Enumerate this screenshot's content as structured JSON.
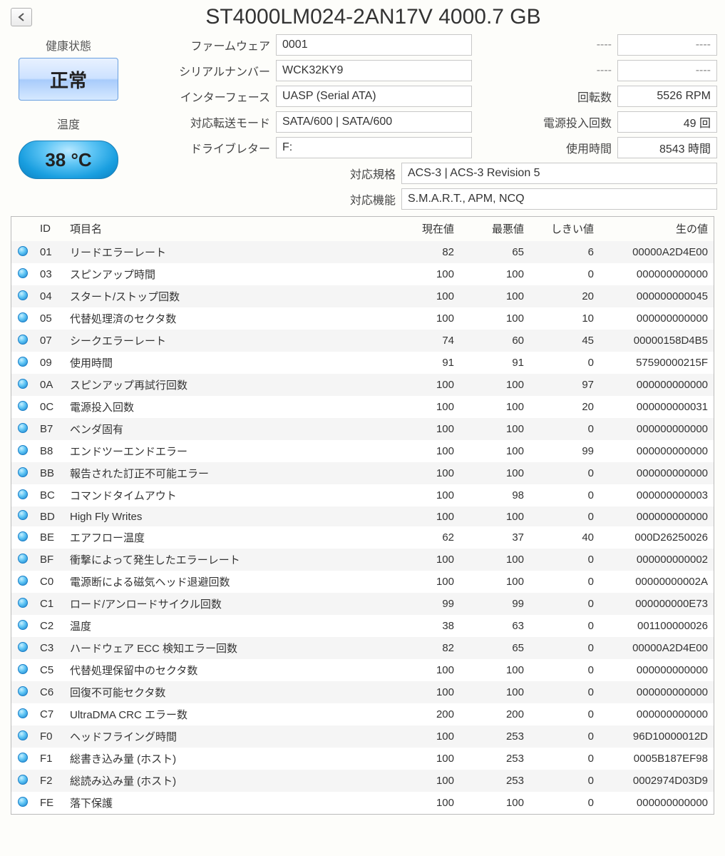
{
  "title": "ST4000LM024-2AN17V 4000.7 GB",
  "health": {
    "label": "健康状態",
    "value": "正常"
  },
  "temp": {
    "label": "温度",
    "value": "38 °C"
  },
  "info": {
    "firmware": {
      "label": "ファームウェア",
      "value": "0001"
    },
    "serial": {
      "label": "シリアルナンバー",
      "value": "WCK32KY9"
    },
    "interface": {
      "label": "インターフェース",
      "value": "UASP (Serial ATA)"
    },
    "transfer": {
      "label": "対応転送モード",
      "value": "SATA/600 | SATA/600"
    },
    "letter": {
      "label": "ドライブレター",
      "value": "F:"
    },
    "standard": {
      "label": "対応規格",
      "value": "ACS-3 | ACS-3 Revision 5"
    },
    "features": {
      "label": "対応機能",
      "value": "S.M.A.R.T., APM, NCQ"
    }
  },
  "extra": {
    "blank1": {
      "label": "----",
      "value": "----"
    },
    "blank2": {
      "label": "----",
      "value": "----"
    },
    "rpm": {
      "label": "回転数",
      "value": "5526 RPM"
    },
    "poc": {
      "label": "電源投入回数",
      "value": "49 回"
    },
    "poh": {
      "label": "使用時間",
      "value": "8543 時間"
    }
  },
  "table": {
    "headers": {
      "id": "ID",
      "name": "項目名",
      "cur": "現在値",
      "wor": "最悪値",
      "thr": "しきい値",
      "raw": "生の値"
    },
    "rows": [
      {
        "id": "01",
        "name": "リードエラーレート",
        "cur": "82",
        "wor": "65",
        "thr": "6",
        "raw": "00000A2D4E00"
      },
      {
        "id": "03",
        "name": "スピンアップ時間",
        "cur": "100",
        "wor": "100",
        "thr": "0",
        "raw": "000000000000"
      },
      {
        "id": "04",
        "name": "スタート/ストップ回数",
        "cur": "100",
        "wor": "100",
        "thr": "20",
        "raw": "000000000045"
      },
      {
        "id": "05",
        "name": "代替処理済のセクタ数",
        "cur": "100",
        "wor": "100",
        "thr": "10",
        "raw": "000000000000"
      },
      {
        "id": "07",
        "name": "シークエラーレート",
        "cur": "74",
        "wor": "60",
        "thr": "45",
        "raw": "00000158D4B5"
      },
      {
        "id": "09",
        "name": "使用時間",
        "cur": "91",
        "wor": "91",
        "thr": "0",
        "raw": "57590000215F"
      },
      {
        "id": "0A",
        "name": "スピンアップ再試行回数",
        "cur": "100",
        "wor": "100",
        "thr": "97",
        "raw": "000000000000"
      },
      {
        "id": "0C",
        "name": "電源投入回数",
        "cur": "100",
        "wor": "100",
        "thr": "20",
        "raw": "000000000031"
      },
      {
        "id": "B7",
        "name": "ベンダ固有",
        "cur": "100",
        "wor": "100",
        "thr": "0",
        "raw": "000000000000"
      },
      {
        "id": "B8",
        "name": "エンドツーエンドエラー",
        "cur": "100",
        "wor": "100",
        "thr": "99",
        "raw": "000000000000"
      },
      {
        "id": "BB",
        "name": "報告された訂正不可能エラー",
        "cur": "100",
        "wor": "100",
        "thr": "0",
        "raw": "000000000000"
      },
      {
        "id": "BC",
        "name": "コマンドタイムアウト",
        "cur": "100",
        "wor": "98",
        "thr": "0",
        "raw": "000000000003"
      },
      {
        "id": "BD",
        "name": "High Fly Writes",
        "cur": "100",
        "wor": "100",
        "thr": "0",
        "raw": "000000000000"
      },
      {
        "id": "BE",
        "name": "エアフロー温度",
        "cur": "62",
        "wor": "37",
        "thr": "40",
        "raw": "000D26250026"
      },
      {
        "id": "BF",
        "name": "衝撃によって発生したエラーレート",
        "cur": "100",
        "wor": "100",
        "thr": "0",
        "raw": "000000000002"
      },
      {
        "id": "C0",
        "name": "電源断による磁気ヘッド退避回数",
        "cur": "100",
        "wor": "100",
        "thr": "0",
        "raw": "00000000002A"
      },
      {
        "id": "C1",
        "name": "ロード/アンロードサイクル回数",
        "cur": "99",
        "wor": "99",
        "thr": "0",
        "raw": "000000000E73"
      },
      {
        "id": "C2",
        "name": "温度",
        "cur": "38",
        "wor": "63",
        "thr": "0",
        "raw": "001100000026"
      },
      {
        "id": "C3",
        "name": "ハードウェア ECC 検知エラー回数",
        "cur": "82",
        "wor": "65",
        "thr": "0",
        "raw": "00000A2D4E00"
      },
      {
        "id": "C5",
        "name": "代替処理保留中のセクタ数",
        "cur": "100",
        "wor": "100",
        "thr": "0",
        "raw": "000000000000"
      },
      {
        "id": "C6",
        "name": "回復不可能セクタ数",
        "cur": "100",
        "wor": "100",
        "thr": "0",
        "raw": "000000000000"
      },
      {
        "id": "C7",
        "name": "UltraDMA CRC エラー数",
        "cur": "200",
        "wor": "200",
        "thr": "0",
        "raw": "000000000000"
      },
      {
        "id": "F0",
        "name": "ヘッドフライング時間",
        "cur": "100",
        "wor": "253",
        "thr": "0",
        "raw": "96D10000012D"
      },
      {
        "id": "F1",
        "name": "総書き込み量 (ホスト)",
        "cur": "100",
        "wor": "253",
        "thr": "0",
        "raw": "0005B187EF98"
      },
      {
        "id": "F2",
        "name": "総読み込み量 (ホスト)",
        "cur": "100",
        "wor": "253",
        "thr": "0",
        "raw": "0002974D03D9"
      },
      {
        "id": "FE",
        "name": "落下保護",
        "cur": "100",
        "wor": "100",
        "thr": "0",
        "raw": "000000000000"
      }
    ]
  }
}
